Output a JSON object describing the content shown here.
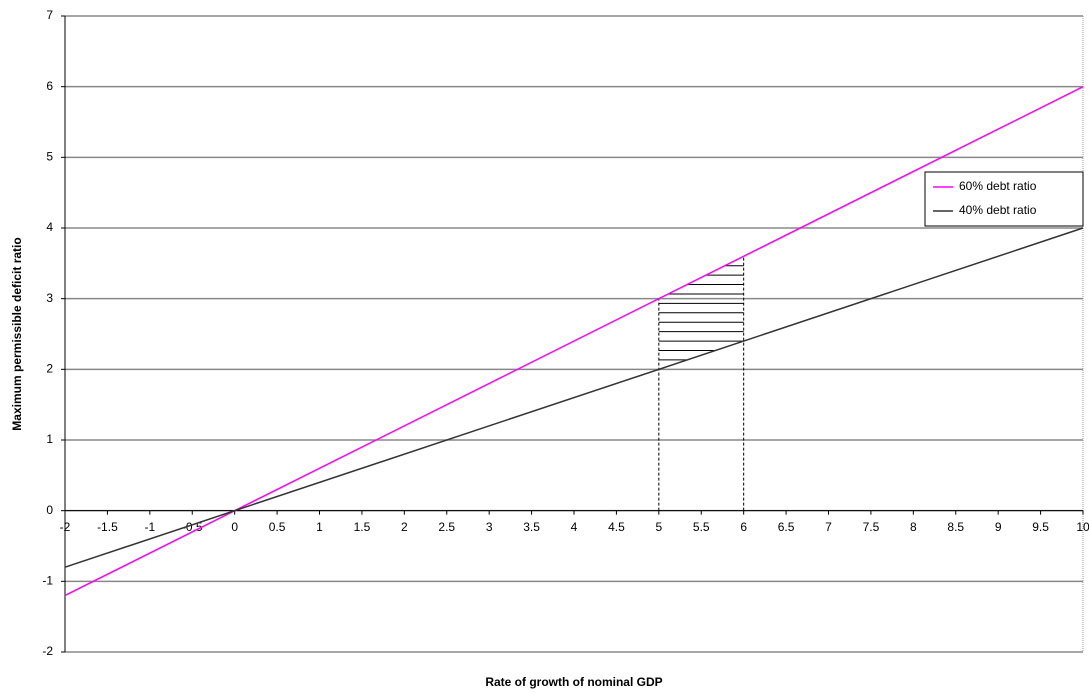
{
  "chart_data": {
    "type": "line",
    "xlabel": "Rate of growth of nominal GDP",
    "ylabel": "Maximum permissible deficit ratio",
    "x": [
      -2,
      10
    ],
    "series": [
      {
        "name": "60% debt ratio",
        "color": "#ff00ff",
        "values": [
          -1.2,
          6
        ]
      },
      {
        "name": "40% debt ratio",
        "color": "#333333",
        "values": [
          -0.8,
          4
        ]
      }
    ],
    "xlim": [
      -2,
      10
    ],
    "xticks": [
      -2,
      -1.5,
      -1,
      -0.5,
      0,
      0.5,
      1,
      1.5,
      2,
      2.5,
      3,
      3.5,
      4,
      4.5,
      5,
      5.5,
      6,
      6.5,
      7,
      7.5,
      8,
      8.5,
      9,
      9.5,
      10
    ],
    "ylim": [
      -2,
      7
    ],
    "yticks": [
      -2,
      -1,
      0,
      1,
      2,
      3,
      4,
      5,
      6,
      7
    ],
    "grid": true,
    "legend": "right",
    "highlight_x": [
      5,
      6
    ]
  }
}
